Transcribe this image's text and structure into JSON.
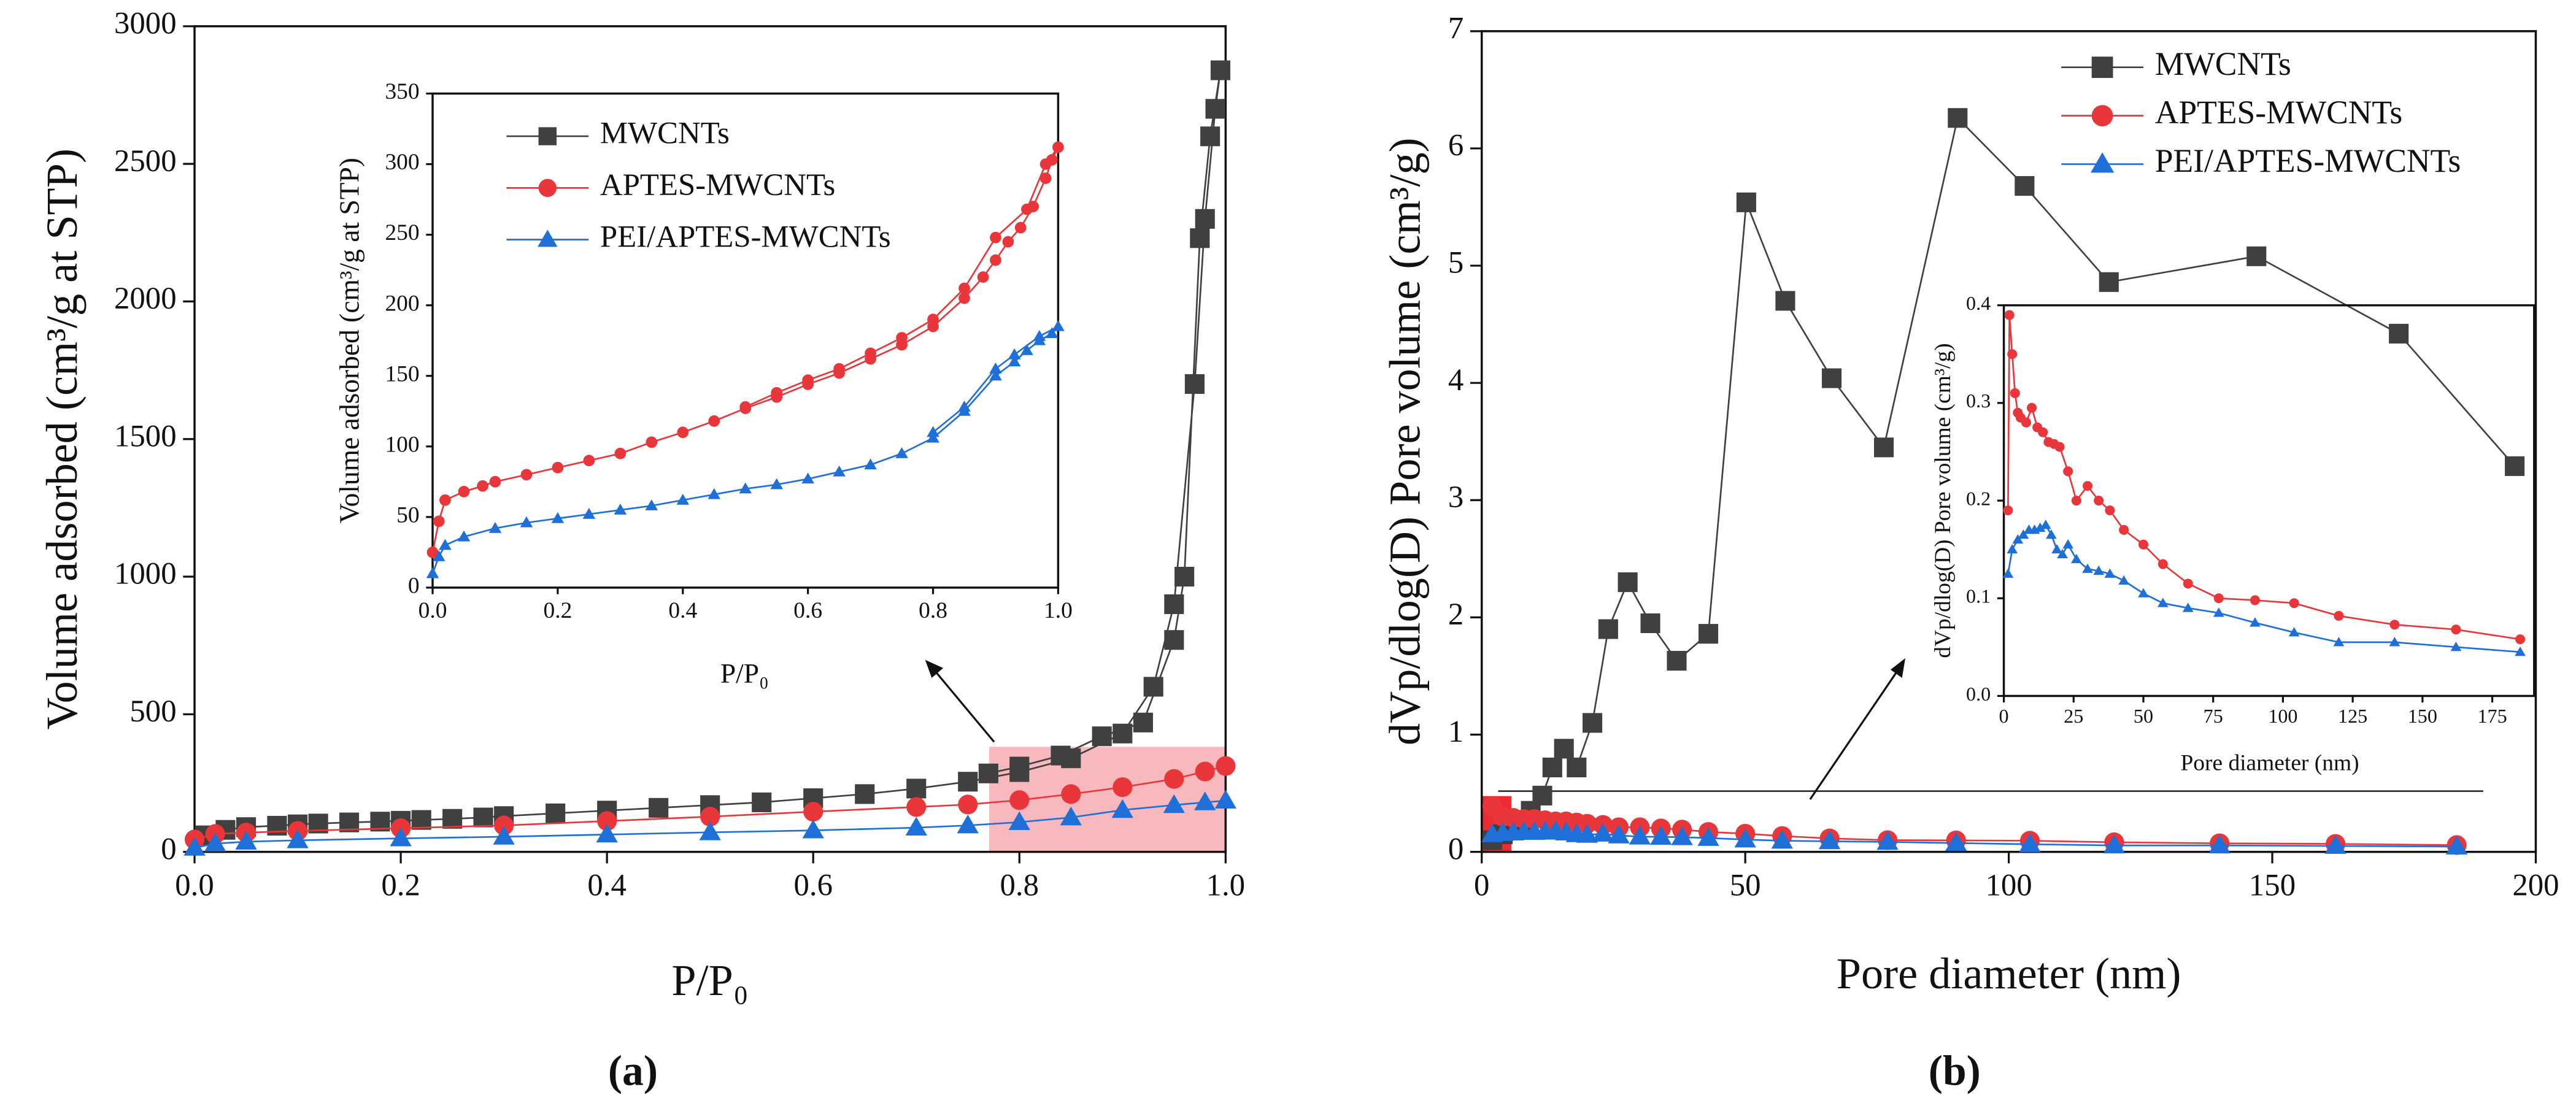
{
  "chart_data": [
    {
      "type": "line",
      "panel_label": "(a)",
      "xlabel": "P/P₀",
      "ylabel": "Volume adsorbed (cm³/g at STP)",
      "xlim": [
        0,
        1
      ],
      "ylim": [
        0,
        3000
      ],
      "xticks": [
        {
          "value": 0,
          "label": "0.0"
        },
        0.2,
        0.4,
        0.6,
        0.8,
        {
          "value": 1,
          "label": "1.0"
        }
      ],
      "yticks": [
        0,
        500,
        1000,
        1500,
        2000,
        2500,
        3000
      ],
      "series": [
        {
          "color": "#404040",
          "marker": "square",
          "x": [
            0.01,
            0.03,
            0.05,
            0.08,
            0.1,
            0.12,
            0.15,
            0.18,
            0.2,
            0.22,
            0.25,
            0.28,
            0.3,
            0.35,
            0.4,
            0.45,
            0.5,
            0.55,
            0.6,
            0.65,
            0.7,
            0.75,
            0.8,
            0.85,
            0.9,
            0.93,
            0.95,
            0.97,
            0.98,
            0.99,
            0.995,
            0.985,
            0.975,
            0.96,
            0.95,
            0.92,
            0.88,
            0.84,
            0.8,
            0.77
          ],
          "values": [
            60,
            80,
            90,
            95,
            100,
            103,
            107,
            110,
            113,
            116,
            120,
            125,
            130,
            140,
            150,
            160,
            170,
            180,
            195,
            210,
            230,
            255,
            290,
            340,
            430,
            600,
            900,
            1700,
            2300,
            2700,
            2840,
            2600,
            2230,
            1000,
            770,
            470,
            420,
            350,
            310,
            285
          ]
        },
        {
          "color": "#e8363a",
          "marker": "circle",
          "x": [
            0,
            0.02,
            0.05,
            0.1,
            0.2,
            0.3,
            0.4,
            0.5,
            0.6,
            0.7,
            0.75,
            0.8,
            0.85,
            0.9,
            0.95,
            0.98,
            1.0
          ],
          "values": [
            45,
            65,
            70,
            76,
            86,
            96,
            112,
            128,
            146,
            163,
            172,
            188,
            210,
            235,
            265,
            292,
            312
          ]
        },
        {
          "color": "#1f6fd8",
          "marker": "triangle",
          "x": [
            0,
            0.02,
            0.05,
            0.1,
            0.2,
            0.3,
            0.4,
            0.5,
            0.6,
            0.7,
            0.75,
            0.8,
            0.85,
            0.9,
            0.95,
            0.98,
            1.0
          ],
          "values": [
            15,
            30,
            37,
            42,
            49,
            55,
            63,
            71,
            78,
            88,
            96,
            108,
            125,
            152,
            170,
            180,
            186
          ]
        }
      ]
    },
    {
      "type": "line",
      "xlabel": "P/P₀",
      "ylabel": "Volume adsorbed (cm³/g at STP)",
      "xlim": [
        0,
        1
      ],
      "ylim": [
        0,
        350
      ],
      "legend": "upper left",
      "xticks": [
        {
          "value": 0,
          "label": "0.0"
        },
        0.2,
        0.4,
        0.6,
        0.8,
        {
          "value": 1,
          "label": "1.0"
        }
      ],
      "yticks": [
        0,
        50,
        100,
        150,
        200,
        250,
        300,
        350
      ],
      "series": [
        {
          "name": "MWCNTs",
          "color": "#404040",
          "marker": "square",
          "x": [],
          "values": []
        },
        {
          "name": "APTES-MWCNTs",
          "color": "#e8363a",
          "marker": "circle",
          "x": [
            0,
            0.01,
            0.02,
            0.05,
            0.08,
            0.1,
            0.15,
            0.2,
            0.25,
            0.3,
            0.35,
            0.4,
            0.45,
            0.5,
            0.55,
            0.6,
            0.65,
            0.7,
            0.75,
            0.8,
            0.85,
            0.88,
            0.9,
            0.92,
            0.94,
            0.96,
            0.98,
            0.99,
            1.0,
            0.98,
            0.95,
            0.9,
            0.85,
            0.8,
            0.75,
            0.7,
            0.65,
            0.6,
            0.55,
            0.5
          ],
          "values": [
            25,
            47,
            62,
            68,
            72,
            75,
            80,
            85,
            90,
            95,
            103,
            110,
            118,
            127,
            135,
            144,
            152,
            162,
            172,
            185,
            205,
            220,
            232,
            245,
            255,
            270,
            290,
            303,
            312,
            300,
            268,
            248,
            212,
            190,
            177,
            166,
            155,
            147,
            138,
            128
          ]
        },
        {
          "name": "PEI/APTES-MWCNTs",
          "color": "#1f6fd8",
          "marker": "triangle",
          "x": [
            0,
            0.01,
            0.02,
            0.05,
            0.1,
            0.15,
            0.2,
            0.25,
            0.3,
            0.35,
            0.4,
            0.45,
            0.5,
            0.55,
            0.6,
            0.65,
            0.7,
            0.75,
            0.8,
            0.85,
            0.9,
            0.93,
            0.95,
            0.97,
            0.99,
            1.0,
            0.97,
            0.93,
            0.9,
            0.85,
            0.8
          ],
          "values": [
            10,
            22,
            30,
            36,
            42,
            46,
            49,
            52,
            55,
            58,
            62,
            66,
            70,
            73,
            77,
            82,
            87,
            95,
            106,
            125,
            150,
            160,
            168,
            175,
            180,
            185,
            178,
            165,
            155,
            128,
            110
          ]
        }
      ]
    },
    {
      "type": "line",
      "panel_label": "(b)",
      "xlabel": "Pore diameter (nm)",
      "ylabel": "dVp/dlog(D) Pore volume (cm³/g)",
      "xlim": [
        0,
        200
      ],
      "ylim": [
        0,
        7
      ],
      "legend": "upper right",
      "xticks": [
        0,
        50,
        100,
        150,
        200
      ],
      "yticks": [
        0,
        1,
        2,
        3,
        4,
        5,
        6,
        7
      ],
      "series": [
        {
          "name": "MWCNTs",
          "color": "#404040",
          "marker": "square",
          "x": [
            2,
            4,
            6,
            8,
            9.3,
            11.5,
            13.4,
            15.6,
            18,
            21,
            24,
            27.7,
            32,
            37,
            43,
            50.2,
            57.6,
            66.4,
            76.3,
            90.3,
            103,
            119,
            147,
            174,
            196
          ],
          "values": [
            0.1,
            0.15,
            0.2,
            0.25,
            0.35,
            0.48,
            0.72,
            0.88,
            0.72,
            1.1,
            1.9,
            2.3,
            1.95,
            1.63,
            1.86,
            5.54,
            4.7,
            4.04,
            3.45,
            6.26,
            5.68,
            4.86,
            5.08,
            4.42,
            3.29
          ]
        },
        {
          "name": "APTES-MWCNTs",
          "color": "#e8363a",
          "marker": "circle",
          "x": [
            2,
            4,
            6,
            8,
            10,
            12,
            14,
            16,
            18,
            20,
            23,
            26,
            30,
            34,
            38,
            43,
            50,
            57,
            66,
            77,
            90,
            104,
            120,
            140,
            162,
            185
          ],
          "values": [
            0.39,
            0.3,
            0.29,
            0.28,
            0.28,
            0.27,
            0.26,
            0.26,
            0.25,
            0.24,
            0.23,
            0.21,
            0.21,
            0.2,
            0.19,
            0.17,
            0.155,
            0.135,
            0.115,
            0.1,
            0.098,
            0.095,
            0.082,
            0.073,
            0.068,
            0.058
          ]
        },
        {
          "name": "PEI/APTES-MWCNTs",
          "color": "#1f6fd8",
          "marker": "triangle",
          "x": [
            2,
            4,
            6,
            8,
            10,
            12,
            14,
            16,
            18,
            20,
            23,
            26,
            30,
            34,
            38,
            43,
            50,
            57,
            66,
            77,
            90,
            104,
            120,
            140,
            162,
            185
          ],
          "values": [
            0.15,
            0.16,
            0.165,
            0.17,
            0.17,
            0.172,
            0.175,
            0.165,
            0.15,
            0.145,
            0.155,
            0.14,
            0.13,
            0.128,
            0.125,
            0.118,
            0.105,
            0.095,
            0.09,
            0.085,
            0.075,
            0.065,
            0.055,
            0.055,
            0.05,
            0.045
          ]
        }
      ]
    },
    {
      "type": "line",
      "xlabel": "Pore diameter (nm)",
      "ylabel": "dVp/dlog(D) Pore volume (cm³/g)",
      "xlim": [
        0,
        190
      ],
      "ylim": [
        0,
        0.4
      ],
      "xticks": [
        0,
        25,
        50,
        75,
        100,
        125,
        150,
        175
      ],
      "yticks": [
        {
          "value": 0,
          "label": "0.0"
        },
        0.1,
        0.2,
        0.3,
        0.4
      ],
      "series": [
        {
          "color": "#e8363a",
          "marker": "circle",
          "x": [
            1.5,
            2,
            3,
            4,
            5,
            6,
            8,
            10,
            12,
            14,
            16,
            18,
            20,
            23,
            26,
            30,
            34,
            38,
            43,
            50,
            57,
            66,
            77,
            90,
            104,
            120,
            140,
            162,
            185
          ],
          "values": [
            0.19,
            0.39,
            0.35,
            0.31,
            0.29,
            0.285,
            0.28,
            0.295,
            0.275,
            0.27,
            0.26,
            0.258,
            0.255,
            0.23,
            0.2,
            0.215,
            0.2,
            0.19,
            0.17,
            0.155,
            0.135,
            0.115,
            0.1,
            0.098,
            0.095,
            0.082,
            0.073,
            0.068,
            0.058
          ]
        },
        {
          "color": "#1f6fd8",
          "marker": "triangle",
          "x": [
            1.5,
            3,
            5,
            7,
            9,
            11,
            13,
            15,
            17,
            19,
            21,
            23,
            26,
            30,
            34,
            38,
            43,
            50,
            57,
            66,
            77,
            90,
            104,
            120,
            140,
            162,
            185
          ],
          "values": [
            0.125,
            0.15,
            0.16,
            0.165,
            0.17,
            0.17,
            0.172,
            0.175,
            0.165,
            0.15,
            0.145,
            0.155,
            0.14,
            0.13,
            0.128,
            0.125,
            0.118,
            0.105,
            0.095,
            0.09,
            0.085,
            0.075,
            0.065,
            0.055,
            0.055,
            0.05,
            0.045
          ]
        }
      ]
    }
  ]
}
